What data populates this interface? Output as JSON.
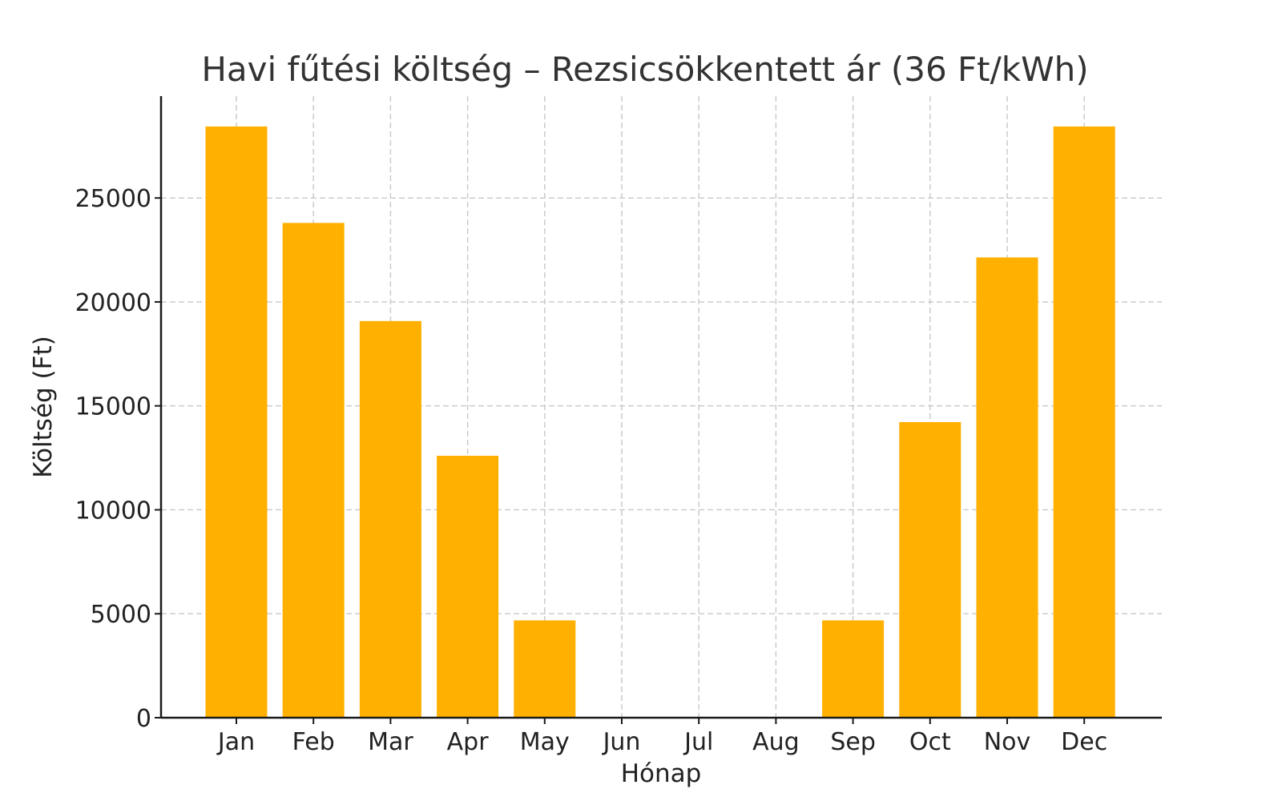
{
  "chart_data": {
    "type": "bar",
    "title": "Havi fűtési költség – Rezsicsökkentett ár (36 Ft/kWh)",
    "xlabel": "Hónap",
    "ylabel": "Költség (Ft)",
    "categories": [
      "Jan",
      "Feb",
      "Mar",
      "Apr",
      "May",
      "Jun",
      "Jul",
      "Aug",
      "Sep",
      "Oct",
      "Nov",
      "Dec"
    ],
    "values": [
      28440,
      23800,
      19080,
      12600,
      4680,
      0,
      0,
      0,
      4680,
      14220,
      22140,
      28440
    ],
    "ylim": [
      0,
      29900
    ],
    "yticks": [
      0,
      5000,
      10000,
      15000,
      20000,
      25000
    ],
    "grid": true,
    "bar_color": "#FFB000"
  }
}
